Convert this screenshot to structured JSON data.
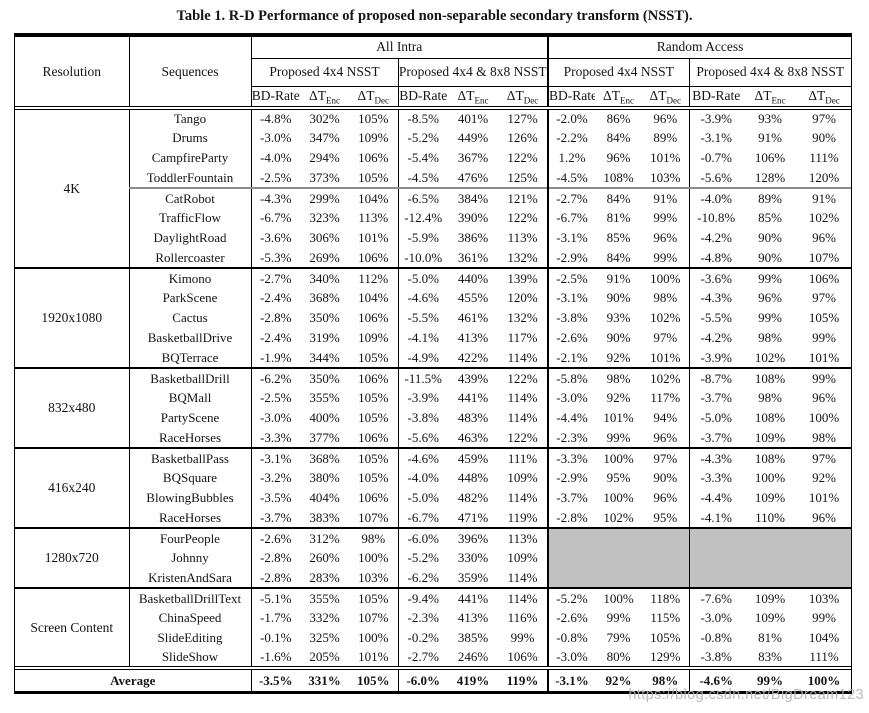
{
  "title": "Table 1. R-D Performance of proposed non-separable secondary transform (NSST).",
  "watermark": "https://blog.csdn.net/BigDream123",
  "colors": {
    "grayed_cell": "#c1c1c1",
    "group_line": "#000000",
    "sub_divider_line": "#8c8c8c"
  },
  "header": {
    "resolution": "Resolution",
    "sequences": "Sequences",
    "sections": [
      {
        "label": "All Intra",
        "subsections": [
          "Proposed 4x4 NSST",
          "Proposed 4x4 & 8x8 NSST"
        ]
      },
      {
        "label": "Random Access",
        "subsections": [
          "Proposed 4x4 NSST",
          "Proposed 4x4 & 8x8 NSST"
        ]
      }
    ],
    "metrics": [
      {
        "text": "BD-Rate",
        "sub": ""
      },
      {
        "text": "ΔT",
        "sub": "Enc"
      },
      {
        "text": "ΔT",
        "sub": "Dec"
      }
    ]
  },
  "groups": [
    {
      "resolution": "4K",
      "rows": [
        {
          "sequence": "Tango",
          "values": [
            "-4.8%",
            "302%",
            "105%",
            "-8.5%",
            "401%",
            "127%",
            "-2.0%",
            "86%",
            "96%",
            "-3.9%",
            "93%",
            "97%"
          ]
        },
        {
          "sequence": "Drums",
          "values": [
            "-3.0%",
            "347%",
            "109%",
            "-5.2%",
            "449%",
            "126%",
            "-2.2%",
            "84%",
            "89%",
            "-3.1%",
            "91%",
            "90%"
          ]
        },
        {
          "sequence": "CampfireParty",
          "values": [
            "-4.0%",
            "294%",
            "106%",
            "-5.4%",
            "367%",
            "122%",
            "1.2%",
            "96%",
            "101%",
            "-0.7%",
            "106%",
            "111%"
          ]
        },
        {
          "sequence": "ToddlerFountain",
          "values": [
            "-2.5%",
            "373%",
            "105%",
            "-4.5%",
            "476%",
            "125%",
            "-4.5%",
            "108%",
            "103%",
            "-5.6%",
            "128%",
            "120%"
          ]
        },
        {
          "sequence": "CatRobot",
          "divider_above": true,
          "values": [
            "-4.3%",
            "299%",
            "104%",
            "-6.5%",
            "384%",
            "121%",
            "-2.7%",
            "84%",
            "91%",
            "-4.0%",
            "89%",
            "91%"
          ]
        },
        {
          "sequence": "TrafficFlow",
          "values": [
            "-6.7%",
            "323%",
            "113%",
            "-12.4%",
            "390%",
            "122%",
            "-6.7%",
            "81%",
            "99%",
            "-10.8%",
            "85%",
            "102%"
          ]
        },
        {
          "sequence": "DaylightRoad",
          "values": [
            "-3.6%",
            "306%",
            "101%",
            "-5.9%",
            "386%",
            "113%",
            "-3.1%",
            "85%",
            "96%",
            "-4.2%",
            "90%",
            "96%"
          ]
        },
        {
          "sequence": "Rollercoaster",
          "values": [
            "-5.3%",
            "269%",
            "106%",
            "-10.0%",
            "361%",
            "132%",
            "-2.9%",
            "84%",
            "99%",
            "-4.8%",
            "90%",
            "107%"
          ]
        }
      ]
    },
    {
      "resolution": "1920x1080",
      "rows": [
        {
          "sequence": "Kimono",
          "values": [
            "-2.7%",
            "340%",
            "112%",
            "-5.0%",
            "440%",
            "139%",
            "-2.5%",
            "91%",
            "100%",
            "-3.6%",
            "99%",
            "106%"
          ]
        },
        {
          "sequence": "ParkScene",
          "values": [
            "-2.4%",
            "368%",
            "104%",
            "-4.6%",
            "455%",
            "120%",
            "-3.1%",
            "90%",
            "98%",
            "-4.3%",
            "96%",
            "97%"
          ]
        },
        {
          "sequence": "Cactus",
          "values": [
            "-2.8%",
            "350%",
            "106%",
            "-5.5%",
            "461%",
            "132%",
            "-3.8%",
            "93%",
            "102%",
            "-5.5%",
            "99%",
            "105%"
          ]
        },
        {
          "sequence": "BasketballDrive",
          "values": [
            "-2.4%",
            "319%",
            "109%",
            "-4.1%",
            "413%",
            "117%",
            "-2.6%",
            "90%",
            "97%",
            "-4.2%",
            "98%",
            "99%"
          ]
        },
        {
          "sequence": "BQTerrace",
          "values": [
            "-1.9%",
            "344%",
            "105%",
            "-4.9%",
            "422%",
            "114%",
            "-2.1%",
            "92%",
            "101%",
            "-3.9%",
            "102%",
            "101%"
          ]
        }
      ]
    },
    {
      "resolution": "832x480",
      "rows": [
        {
          "sequence": "BasketballDrill",
          "values": [
            "-6.2%",
            "350%",
            "106%",
            "-11.5%",
            "439%",
            "122%",
            "-5.8%",
            "98%",
            "102%",
            "-8.7%",
            "108%",
            "99%"
          ]
        },
        {
          "sequence": "BQMall",
          "values": [
            "-2.5%",
            "355%",
            "105%",
            "-3.9%",
            "441%",
            "114%",
            "-3.0%",
            "92%",
            "117%",
            "-3.7%",
            "98%",
            "96%"
          ]
        },
        {
          "sequence": "PartyScene",
          "values": [
            "-3.0%",
            "400%",
            "105%",
            "-3.8%",
            "483%",
            "114%",
            "-4.4%",
            "101%",
            "94%",
            "-5.0%",
            "108%",
            "100%"
          ]
        },
        {
          "sequence": "RaceHorses",
          "values": [
            "-3.3%",
            "377%",
            "106%",
            "-5.6%",
            "463%",
            "122%",
            "-2.3%",
            "99%",
            "96%",
            "-3.7%",
            "109%",
            "98%"
          ]
        }
      ]
    },
    {
      "resolution": "416x240",
      "rows": [
        {
          "sequence": "BasketballPass",
          "values": [
            "-3.1%",
            "368%",
            "105%",
            "-4.6%",
            "459%",
            "111%",
            "-3.3%",
            "100%",
            "97%",
            "-4.3%",
            "108%",
            "97%"
          ]
        },
        {
          "sequence": "BQSquare",
          "values": [
            "-3.2%",
            "380%",
            "105%",
            "-4.0%",
            "448%",
            "109%",
            "-2.9%",
            "95%",
            "90%",
            "-3.3%",
            "100%",
            "92%"
          ]
        },
        {
          "sequence": "BlowingBubbles",
          "values": [
            "-3.5%",
            "404%",
            "106%",
            "-5.0%",
            "482%",
            "114%",
            "-3.7%",
            "100%",
            "96%",
            "-4.4%",
            "109%",
            "101%"
          ]
        },
        {
          "sequence": "RaceHorses",
          "values": [
            "-3.7%",
            "383%",
            "107%",
            "-6.7%",
            "471%",
            "119%",
            "-2.8%",
            "102%",
            "95%",
            "-4.1%",
            "110%",
            "96%"
          ]
        }
      ]
    },
    {
      "resolution": "1280x720",
      "grayed_ra": true,
      "rows": [
        {
          "sequence": "FourPeople",
          "values": [
            "-2.6%",
            "312%",
            "98%",
            "-6.0%",
            "396%",
            "113%"
          ]
        },
        {
          "sequence": "Johnny",
          "values": [
            "-2.8%",
            "260%",
            "100%",
            "-5.2%",
            "330%",
            "109%"
          ]
        },
        {
          "sequence": "KristenAndSara",
          "values": [
            "-2.8%",
            "283%",
            "103%",
            "-6.2%",
            "359%",
            "114%"
          ]
        }
      ]
    },
    {
      "resolution": "Screen Content",
      "rows": [
        {
          "sequence": "BasketballDrillText",
          "values": [
            "-5.1%",
            "355%",
            "105%",
            "-9.4%",
            "441%",
            "114%",
            "-5.2%",
            "100%",
            "118%",
            "-7.6%",
            "109%",
            "103%"
          ]
        },
        {
          "sequence": "ChinaSpeed",
          "values": [
            "-1.7%",
            "332%",
            "107%",
            "-2.3%",
            "413%",
            "116%",
            "-2.6%",
            "99%",
            "115%",
            "-3.0%",
            "109%",
            "99%"
          ]
        },
        {
          "sequence": "SlideEditing",
          "values": [
            "-0.1%",
            "325%",
            "100%",
            "-0.2%",
            "385%",
            "99%",
            "-0.8%",
            "79%",
            "105%",
            "-0.8%",
            "81%",
            "104%"
          ]
        },
        {
          "sequence": "SlideShow",
          "values": [
            "-1.6%",
            "205%",
            "101%",
            "-2.7%",
            "246%",
            "106%",
            "-3.0%",
            "80%",
            "129%",
            "-3.8%",
            "83%",
            "111%"
          ]
        }
      ]
    }
  ],
  "average": {
    "label": "Average",
    "values": [
      "-3.5%",
      "331%",
      "105%",
      "-6.0%",
      "419%",
      "119%",
      "-3.1%",
      "92%",
      "98%",
      "-4.6%",
      "99%",
      "100%"
    ]
  }
}
